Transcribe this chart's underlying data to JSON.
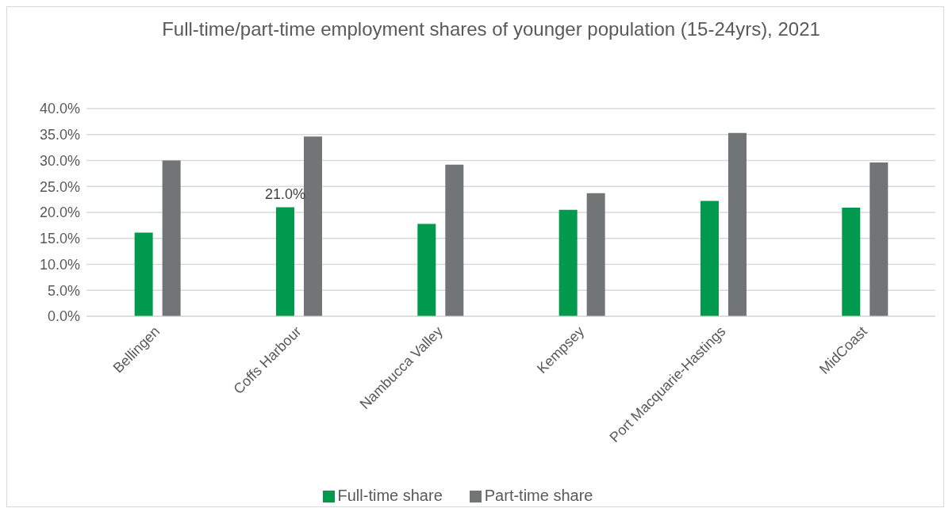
{
  "chart_data": {
    "type": "bar",
    "title": "Full-time/part-time employment shares of younger population (15-24yrs), 2021",
    "categories": [
      "Bellingen",
      "Coffs Harbour",
      "Nambucca Valley",
      "Kempsey",
      "Port Macquarie-Hastings",
      "MidCoast"
    ],
    "series": [
      {
        "name": "Full-time share",
        "color": "#009a4e",
        "values": [
          16.1,
          21.0,
          17.8,
          20.5,
          22.2,
          20.9
        ],
        "value_labels": [
          null,
          "21.0%",
          null,
          null,
          null,
          null
        ]
      },
      {
        "name": "Part-time share",
        "color": "#717575",
        "values": [
          30.0,
          34.6,
          29.2,
          23.7,
          35.3,
          29.6
        ]
      }
    ],
    "ylim": [
      0,
      40
    ],
    "yticks": [
      {
        "value": 0,
        "label": "0.0%"
      },
      {
        "value": 5,
        "label": "5.0%"
      },
      {
        "value": 10,
        "label": "10.0%"
      },
      {
        "value": 15,
        "label": "15.0%"
      },
      {
        "value": 20,
        "label": "20.0%"
      },
      {
        "value": 25,
        "label": "25.0%"
      },
      {
        "value": 30,
        "label": "30.0%"
      },
      {
        "value": 35,
        "label": "35.0%"
      },
      {
        "value": 40,
        "label": "40.0%"
      }
    ],
    "grid": "y",
    "legend": "bottom"
  }
}
